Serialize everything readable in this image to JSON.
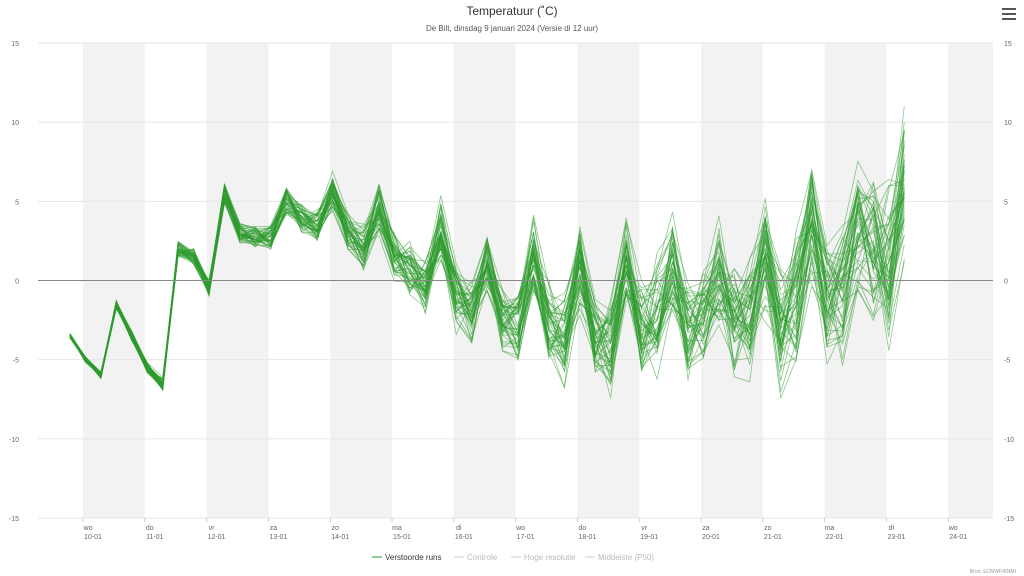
{
  "chart_data": {
    "type": "line",
    "title": "Temperatuur (˚C)",
    "subtitle": "De Bilt, dinsdag 9 januari 2024 (Versie di 12 uur)",
    "ylim": [
      -15,
      15
    ],
    "yticks": [
      "15",
      "10",
      "5",
      "0",
      "-5",
      "-10",
      "-15"
    ],
    "day_labels": [
      {
        "dow": "wo",
        "date": "10-01"
      },
      {
        "dow": "do",
        "date": "11-01"
      },
      {
        "dow": "vr",
        "date": "12-01"
      },
      {
        "dow": "za",
        "date": "13-01"
      },
      {
        "dow": "zo",
        "date": "14-01"
      },
      {
        "dow": "ma",
        "date": "15-01"
      },
      {
        "dow": "di",
        "date": "16-01"
      },
      {
        "dow": "wo",
        "date": "17-01"
      },
      {
        "dow": "do",
        "date": "18-01"
      },
      {
        "dow": "vr",
        "date": "19-01"
      },
      {
        "dow": "za",
        "date": "20-01"
      },
      {
        "dow": "zo",
        "date": "21-01"
      },
      {
        "dow": "ma",
        "date": "22-01"
      },
      {
        "dow": "di",
        "date": "23-01"
      },
      {
        "dow": "wo",
        "date": "24-01"
      }
    ],
    "step_hours": 6,
    "base_series": [
      -3.5,
      -5,
      -6,
      -1.5,
      -3.5,
      -5.5,
      -6.5,
      2,
      1.5,
      -0.5,
      5.5,
      3,
      2.8,
      2.8,
      5,
      4,
      3.5,
      5.5,
      3,
      2,
      4.5,
      1.5,
      0.5,
      -0.5,
      3,
      -1,
      -2,
      1,
      -2.5,
      -3,
      1.5,
      -2.5,
      -3.5,
      1,
      -3.5,
      -4,
      1,
      -3,
      -2,
      1,
      -3,
      -2,
      0.5,
      -2.5,
      -2,
      1.5,
      -2.5,
      -1,
      3,
      -1,
      -0.5,
      3,
      1.5,
      1,
      6
    ],
    "legend": [
      {
        "label": "Verstoorde runs",
        "active": true
      },
      {
        "label": "Controle",
        "active": false
      },
      {
        "label": "Hoge resolutie",
        "active": false
      },
      {
        "label": "Middelste (P50)",
        "active": false
      }
    ],
    "credit": "Bron: ECMWF/KNMI",
    "colors": {
      "runs": "#2e9b2e",
      "band": "#f2f2f2",
      "zero": "#888888"
    }
  }
}
